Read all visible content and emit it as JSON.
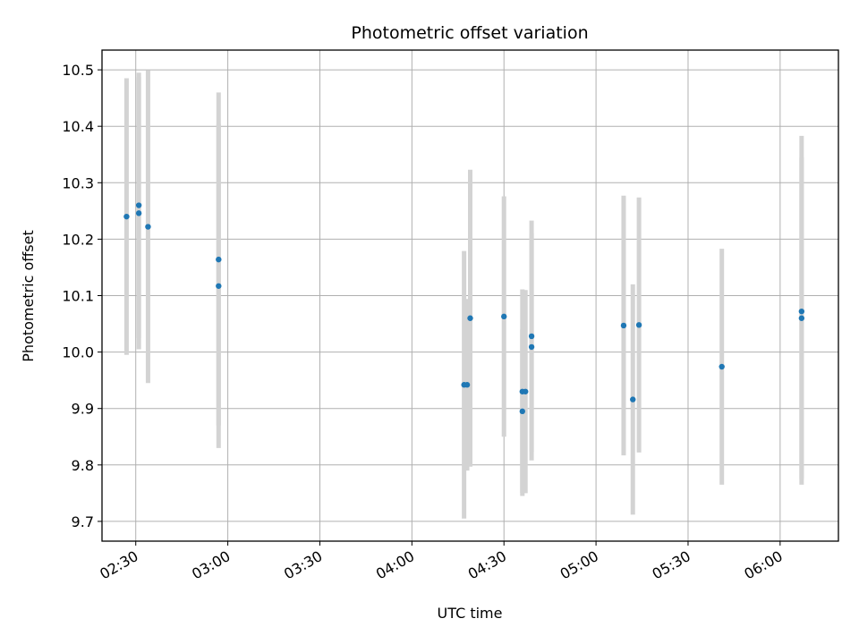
{
  "chart_data": {
    "type": "scatter",
    "title": "Photometric offset variation",
    "xlabel": "UTC time",
    "ylabel": "Photometric offset",
    "x_ticks": [
      "02:30",
      "03:00",
      "03:30",
      "04:00",
      "04:30",
      "05:00",
      "05:30",
      "06:00"
    ],
    "y_ticks": [
      "9.7",
      "9.8",
      "9.9",
      "10.0",
      "10.1",
      "10.2",
      "10.3",
      "10.4",
      "10.5"
    ],
    "xlim": [
      "02:19",
      "06:19"
    ],
    "ylim": [
      9.665,
      10.535
    ],
    "grid": true,
    "point_color": "#1f77b4",
    "errorbar_color": "#d3d3d3",
    "series": [
      {
        "points": [
          {
            "time": "02:27",
            "y": 10.24,
            "err_low": 9.995,
            "err_high": 10.485
          },
          {
            "time": "02:31",
            "y": 10.26,
            "err_low": 10.025,
            "err_high": 10.495
          },
          {
            "time": "02:31",
            "y": 10.246,
            "err_low": 10.005,
            "err_high": 10.487
          },
          {
            "time": "02:34",
            "y": 10.222,
            "err_low": 9.945,
            "err_high": 10.499
          },
          {
            "time": "02:57",
            "y": 10.164,
            "err_low": 9.87,
            "err_high": 10.46
          },
          {
            "time": "02:57",
            "y": 10.117,
            "err_low": 9.83,
            "err_high": 10.404
          },
          {
            "time": "04:17",
            "y": 9.942,
            "err_low": 9.705,
            "err_high": 10.179
          },
          {
            "time": "04:18",
            "y": 9.942,
            "err_low": 9.79,
            "err_high": 10.094
          },
          {
            "time": "04:19",
            "y": 10.06,
            "err_low": 9.797,
            "err_high": 10.323
          },
          {
            "time": "04:30",
            "y": 10.063,
            "err_low": 9.85,
            "err_high": 10.276
          },
          {
            "time": "04:36",
            "y": 9.93,
            "err_low": 9.745,
            "err_high": 10.111
          },
          {
            "time": "04:36",
            "y": 9.895,
            "err_low": 9.75,
            "err_high": 10.04
          },
          {
            "time": "04:37",
            "y": 9.93,
            "err_low": 9.75,
            "err_high": 10.11
          },
          {
            "time": "04:39",
            "y": 10.028,
            "err_low": 9.823,
            "err_high": 10.233
          },
          {
            "time": "04:39",
            "y": 10.009,
            "err_low": 9.808,
            "err_high": 10.21
          },
          {
            "time": "05:09",
            "y": 10.047,
            "err_low": 9.817,
            "err_high": 10.277
          },
          {
            "time": "05:12",
            "y": 9.916,
            "err_low": 9.712,
            "err_high": 10.12
          },
          {
            "time": "05:14",
            "y": 10.048,
            "err_low": 9.822,
            "err_high": 10.274
          },
          {
            "time": "05:41",
            "y": 9.974,
            "err_low": 9.765,
            "err_high": 10.183
          },
          {
            "time": "06:07",
            "y": 10.06,
            "err_low": 9.775,
            "err_high": 10.345
          },
          {
            "time": "06:07",
            "y": 10.072,
            "err_low": 9.765,
            "err_high": 10.383
          }
        ]
      }
    ]
  }
}
